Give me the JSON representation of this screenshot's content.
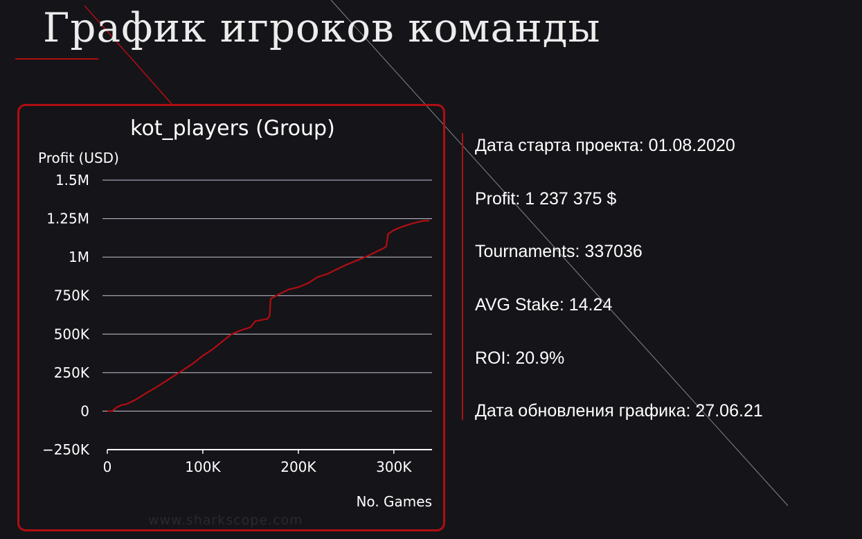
{
  "title": "График игроков команды",
  "stats": [
    "Дата старта проекта: 01.08.2020",
    "Profit: 1 237 375 $",
    "Tournaments: 337036",
    "AVG Stake: 14.24",
    "ROI: 20.9%",
    "Дата обновления графика: 27.06.21"
  ],
  "watermark": "www.sharkscope.com",
  "colors": {
    "background": "#151419",
    "accent": "#b10e11",
    "line": "#b10e11",
    "grid": "#c8c8d6",
    "text": "#ffffff"
  },
  "chart_data": {
    "type": "line",
    "title": "kot_players (Group)",
    "xlabel": "No. Games",
    "ylabel": "Profit (USD)",
    "xlim": [
      0,
      340000
    ],
    "ylim": [
      -250000,
      1500000
    ],
    "x_ticks": [
      0,
      100000,
      200000,
      300000
    ],
    "x_tick_labels": [
      "0",
      "100K",
      "200K",
      "300K"
    ],
    "y_ticks": [
      -250000,
      0,
      250000,
      500000,
      750000,
      1000000,
      1250000,
      1500000
    ],
    "y_tick_labels": [
      "−250K",
      "0",
      "250K",
      "500K",
      "750K",
      "1M",
      "1.25M",
      "1.5M"
    ],
    "grid": true,
    "series": [
      {
        "x": [
          0,
          5000,
          10000,
          15000,
          20000,
          30000,
          40000,
          50000,
          60000,
          70000,
          80000,
          90000,
          100000,
          110000,
          120000,
          130000,
          140000,
          150000,
          155000,
          160000,
          168000,
          170000,
          171000,
          180000,
          190000,
          200000,
          210000,
          220000,
          230000,
          240000,
          250000,
          260000,
          270000,
          280000,
          290000,
          292000,
          294000,
          300000,
          310000,
          320000,
          330000,
          337036
        ],
        "y": [
          0,
          0,
          25000,
          40000,
          45000,
          75000,
          115000,
          150000,
          190000,
          230000,
          270000,
          310000,
          360000,
          400000,
          450000,
          500000,
          525000,
          545000,
          585000,
          590000,
          600000,
          620000,
          730000,
          760000,
          790000,
          805000,
          830000,
          870000,
          890000,
          920000,
          950000,
          975000,
          1000000,
          1030000,
          1060000,
          1070000,
          1150000,
          1175000,
          1200000,
          1220000,
          1235000,
          1237375
        ]
      }
    ]
  }
}
